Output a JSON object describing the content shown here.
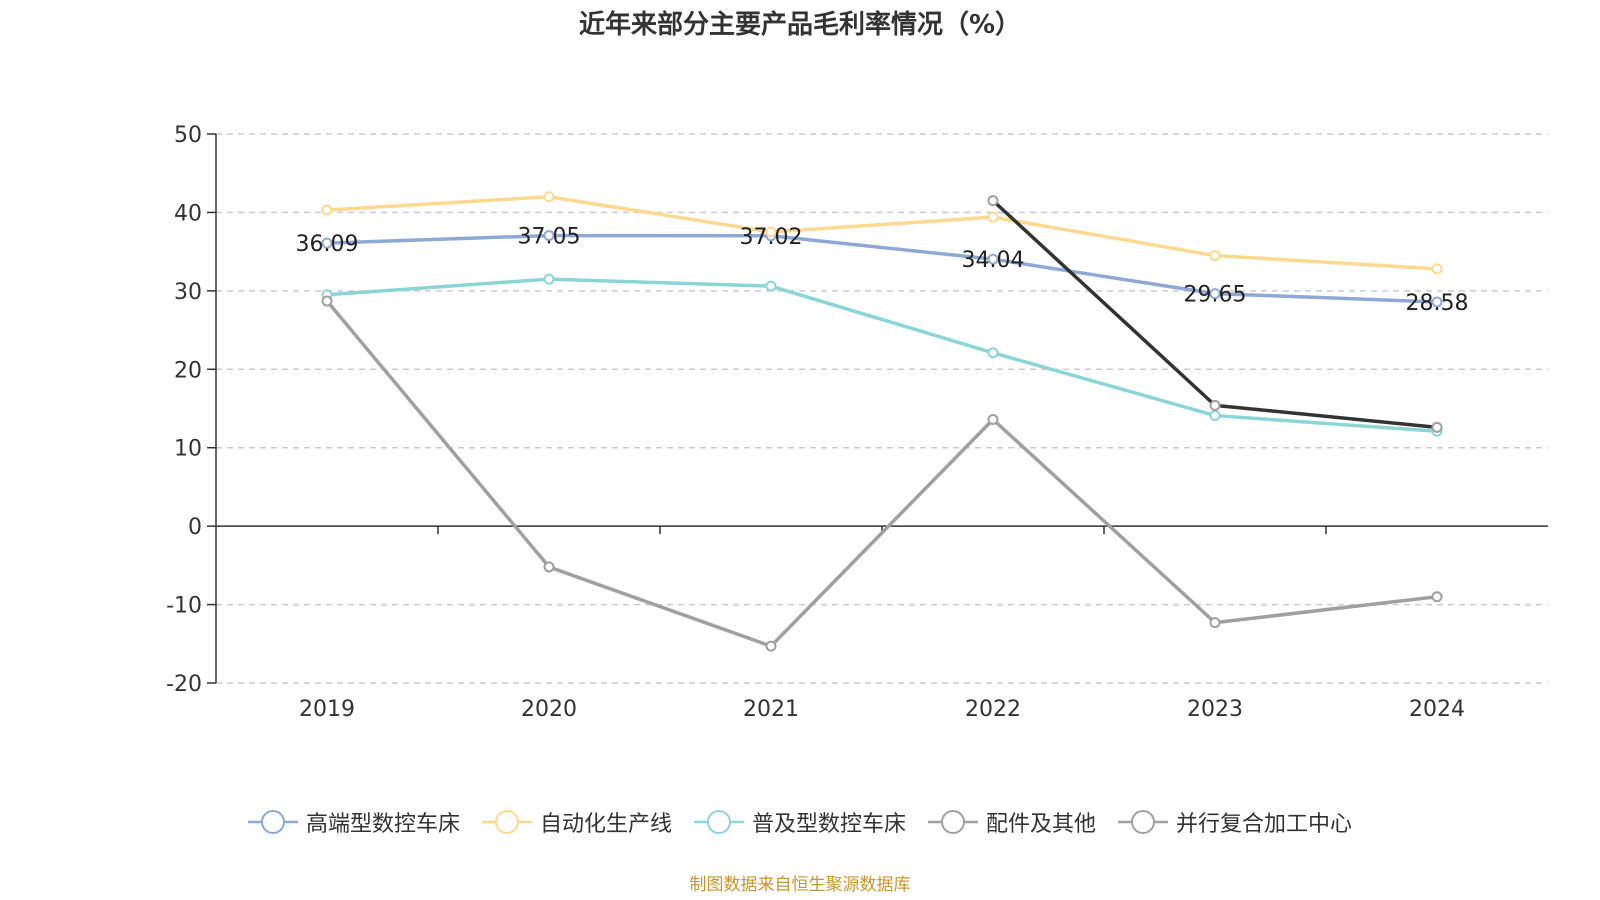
{
  "chart_data": {
    "type": "line",
    "title": "近年来部分主要产品毛利率情况（%）",
    "xlabel": "",
    "ylabel": "",
    "categories": [
      "2019",
      "2020",
      "2021",
      "2022",
      "2023",
      "2024"
    ],
    "ylim": [
      -20,
      50
    ],
    "yticks": [
      50,
      40,
      30,
      20,
      10,
      0,
      -10,
      -20
    ],
    "grid": true,
    "legend_position": "bottom",
    "series": [
      {
        "name": "高端型数控车床",
        "color": "#8fa9d4",
        "values": [
          36.09,
          37.05,
          37.02,
          34.04,
          29.65,
          28.58
        ],
        "labels": [
          "36.09",
          "37.05",
          "37.02",
          "34.04",
          "29.65",
          "28.58"
        ]
      },
      {
        "name": "自动化生产线",
        "color": "#fbd98f",
        "values": [
          40.3,
          42.0,
          37.5,
          39.4,
          34.5,
          32.8
        ]
      },
      {
        "name": "普及型数控车床",
        "color": "#8ad6d6",
        "values": [
          29.5,
          31.5,
          30.6,
          22.1,
          14.1,
          12.1
        ]
      },
      {
        "name": "配件及其他",
        "color": "#a0a0a0",
        "values": [
          28.7,
          -5.2,
          -15.3,
          13.6,
          -12.3,
          -9.0
        ]
      },
      {
        "name": "并行复合加工中心",
        "color": "#333333",
        "values": [
          null,
          null,
          null,
          41.5,
          15.4,
          12.6
        ]
      }
    ]
  },
  "source": "制图数据来自恒生聚源数据库"
}
